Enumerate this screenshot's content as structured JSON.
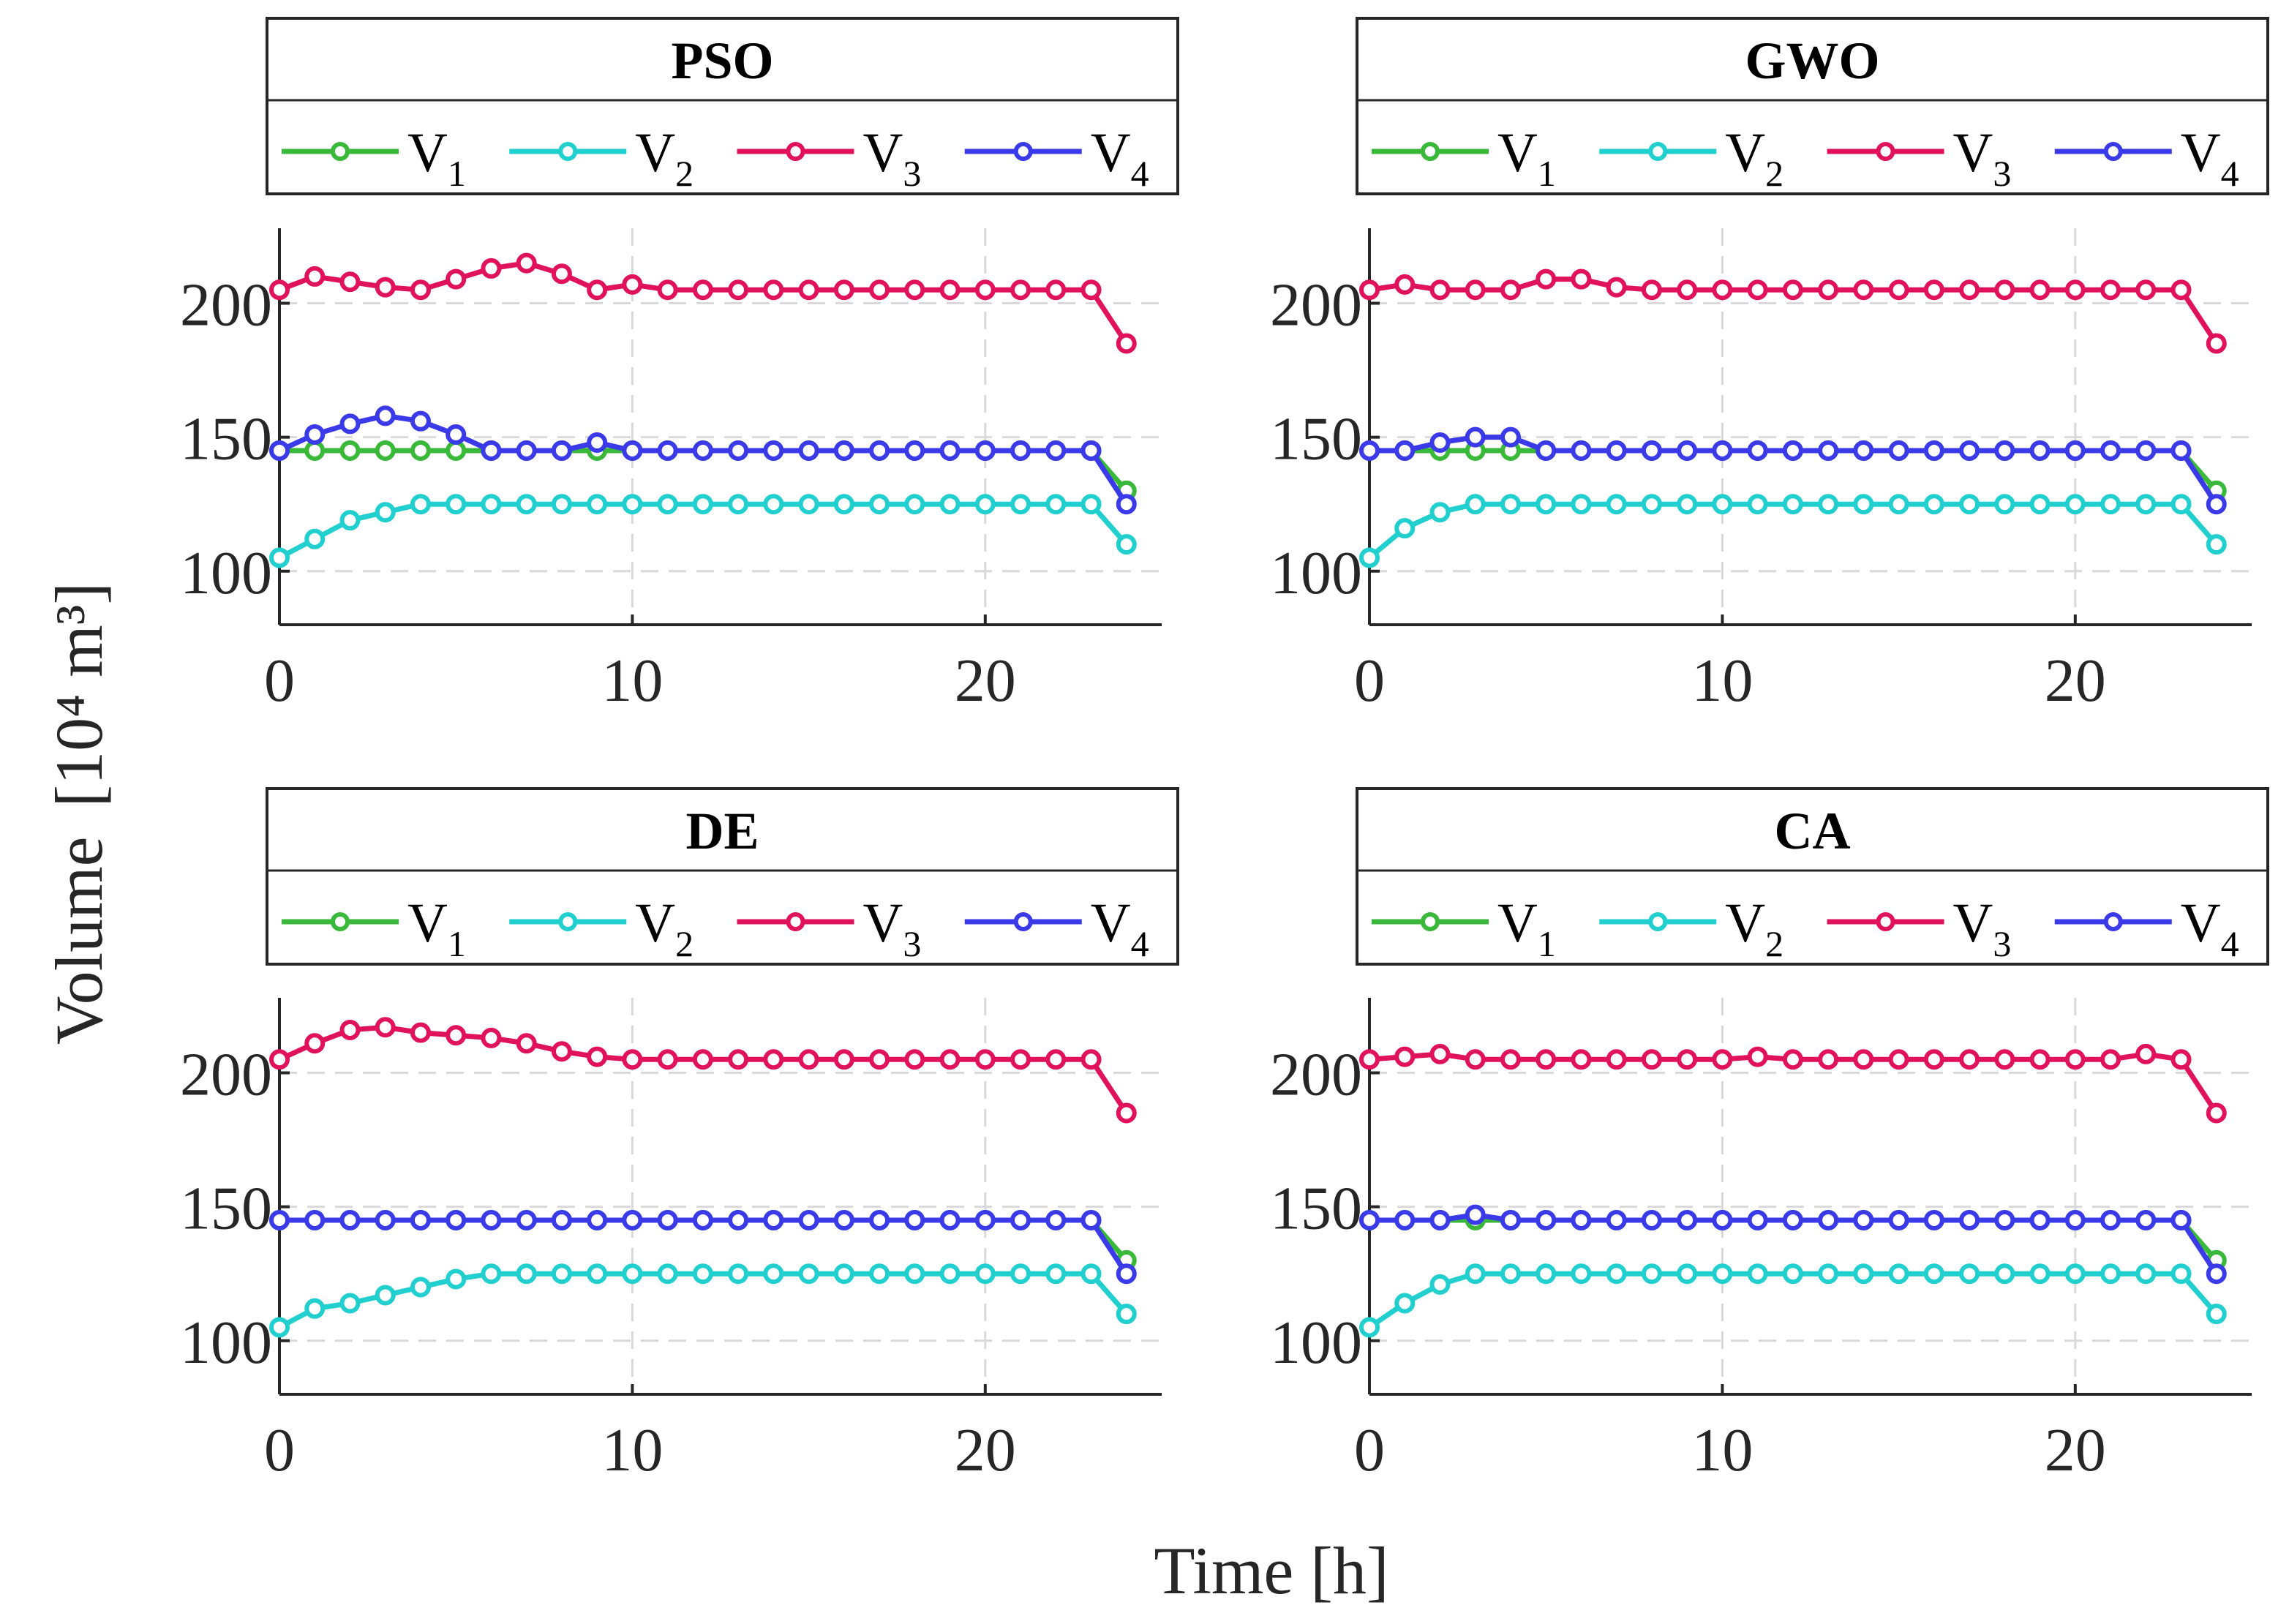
{
  "chart_data": {
    "type": "line",
    "xlabel": "Time [h]",
    "ylabel": "Volume",
    "ylabel_unit": "[10⁴ m³]",
    "xlim": [
      0,
      25
    ],
    "ylim": [
      80,
      228
    ],
    "xticks": [
      "0",
      "10",
      "20"
    ],
    "yticks": [
      "100",
      "150",
      "200"
    ],
    "grid": true,
    "legend_position": "top, boxed above each panel",
    "colors": {
      "V1": "#3ab83a",
      "V2": "#22cfcf",
      "V3": "#e0125a",
      "V4": "#3a3ae8"
    },
    "panels": [
      {
        "title": "PSO",
        "x": [
          0,
          1,
          2,
          3,
          4,
          5,
          6,
          7,
          8,
          9,
          10,
          11,
          12,
          13,
          14,
          15,
          16,
          17,
          18,
          19,
          20,
          21,
          22,
          23,
          24
        ],
        "series": [
          {
            "name": "V",
            "sub": "1",
            "values": [
              145,
              145,
              145,
              145,
              145,
              145,
              145,
              145,
              145,
              145,
              145,
              145,
              145,
              145,
              145,
              145,
              145,
              145,
              145,
              145,
              145,
              145,
              145,
              145,
              130
            ]
          },
          {
            "name": "V",
            "sub": "2",
            "values": [
              105,
              112,
              119,
              122,
              125,
              125,
              125,
              125,
              125,
              125,
              125,
              125,
              125,
              125,
              125,
              125,
              125,
              125,
              125,
              125,
              125,
              125,
              125,
              125,
              110
            ]
          },
          {
            "name": "V",
            "sub": "3",
            "values": [
              205,
              210,
              208,
              206,
              205,
              209,
              213,
              215,
              211,
              205,
              207,
              205,
              205,
              205,
              205,
              205,
              205,
              205,
              205,
              205,
              205,
              205,
              205,
              205,
              185
            ]
          },
          {
            "name": "V",
            "sub": "4",
            "values": [
              145,
              151,
              155,
              158,
              156,
              151,
              145,
              145,
              145,
              148,
              145,
              145,
              145,
              145,
              145,
              145,
              145,
              145,
              145,
              145,
              145,
              145,
              145,
              145,
              125
            ]
          }
        ]
      },
      {
        "title": "GWO",
        "x": [
          0,
          1,
          2,
          3,
          4,
          5,
          6,
          7,
          8,
          9,
          10,
          11,
          12,
          13,
          14,
          15,
          16,
          17,
          18,
          19,
          20,
          21,
          22,
          23,
          24
        ],
        "series": [
          {
            "name": "V",
            "sub": "1",
            "values": [
              145,
              145,
              145,
              145,
              145,
              145,
              145,
              145,
              145,
              145,
              145,
              145,
              145,
              145,
              145,
              145,
              145,
              145,
              145,
              145,
              145,
              145,
              145,
              145,
              130
            ]
          },
          {
            "name": "V",
            "sub": "2",
            "values": [
              105,
              116,
              122,
              125,
              125,
              125,
              125,
              125,
              125,
              125,
              125,
              125,
              125,
              125,
              125,
              125,
              125,
              125,
              125,
              125,
              125,
              125,
              125,
              125,
              110
            ]
          },
          {
            "name": "V",
            "sub": "3",
            "values": [
              205,
              207,
              205,
              205,
              205,
              209,
              209,
              206,
              205,
              205,
              205,
              205,
              205,
              205,
              205,
              205,
              205,
              205,
              205,
              205,
              205,
              205,
              205,
              205,
              185
            ]
          },
          {
            "name": "V",
            "sub": "4",
            "values": [
              145,
              145,
              148,
              150,
              150,
              145,
              145,
              145,
              145,
              145,
              145,
              145,
              145,
              145,
              145,
              145,
              145,
              145,
              145,
              145,
              145,
              145,
              145,
              145,
              125
            ]
          }
        ]
      },
      {
        "title": "DE",
        "x": [
          0,
          1,
          2,
          3,
          4,
          5,
          6,
          7,
          8,
          9,
          10,
          11,
          12,
          13,
          14,
          15,
          16,
          17,
          18,
          19,
          20,
          21,
          22,
          23,
          24
        ],
        "series": [
          {
            "name": "V",
            "sub": "1",
            "values": [
              145,
              145,
              145,
              145,
              145,
              145,
              145,
              145,
              145,
              145,
              145,
              145,
              145,
              145,
              145,
              145,
              145,
              145,
              145,
              145,
              145,
              145,
              145,
              145,
              130
            ]
          },
          {
            "name": "V",
            "sub": "2",
            "values": [
              105,
              112,
              114,
              117,
              120,
              123,
              125,
              125,
              125,
              125,
              125,
              125,
              125,
              125,
              125,
              125,
              125,
              125,
              125,
              125,
              125,
              125,
              125,
              125,
              110
            ]
          },
          {
            "name": "V",
            "sub": "3",
            "values": [
              205,
              211,
              216,
              217,
              215,
              214,
              213,
              211,
              208,
              206,
              205,
              205,
              205,
              205,
              205,
              205,
              205,
              205,
              205,
              205,
              205,
              205,
              205,
              205,
              185
            ]
          },
          {
            "name": "V",
            "sub": "4",
            "values": [
              145,
              145,
              145,
              145,
              145,
              145,
              145,
              145,
              145,
              145,
              145,
              145,
              145,
              145,
              145,
              145,
              145,
              145,
              145,
              145,
              145,
              145,
              145,
              145,
              125
            ]
          }
        ]
      },
      {
        "title": "CA",
        "x": [
          0,
          1,
          2,
          3,
          4,
          5,
          6,
          7,
          8,
          9,
          10,
          11,
          12,
          13,
          14,
          15,
          16,
          17,
          18,
          19,
          20,
          21,
          22,
          23,
          24
        ],
        "series": [
          {
            "name": "V",
            "sub": "1",
            "values": [
              145,
              145,
              145,
              145,
              145,
              145,
              145,
              145,
              145,
              145,
              145,
              145,
              145,
              145,
              145,
              145,
              145,
              145,
              145,
              145,
              145,
              145,
              145,
              145,
              130
            ]
          },
          {
            "name": "V",
            "sub": "2",
            "values": [
              105,
              114,
              121,
              125,
              125,
              125,
              125,
              125,
              125,
              125,
              125,
              125,
              125,
              125,
              125,
              125,
              125,
              125,
              125,
              125,
              125,
              125,
              125,
              125,
              110
            ]
          },
          {
            "name": "V",
            "sub": "3",
            "values": [
              205,
              206,
              207,
              205,
              205,
              205,
              205,
              205,
              205,
              205,
              205,
              206,
              205,
              205,
              205,
              205,
              205,
              205,
              205,
              205,
              205,
              205,
              207,
              205,
              185
            ]
          },
          {
            "name": "V",
            "sub": "4",
            "values": [
              145,
              145,
              145,
              147,
              145,
              145,
              145,
              145,
              145,
              145,
              145,
              145,
              145,
              145,
              145,
              145,
              145,
              145,
              145,
              145,
              145,
              145,
              145,
              145,
              125
            ]
          }
        ]
      }
    ]
  }
}
